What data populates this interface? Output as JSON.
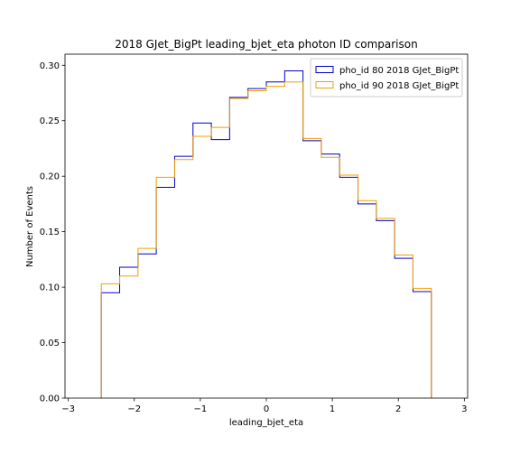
{
  "chart_data": {
    "type": "step",
    "title": "2018 GJet_BigPt leading_bjet_eta photon ID comparison",
    "xlabel": "leading_bjet_eta",
    "ylabel": "Number of Events",
    "xlim": [
      -3.05,
      3.05
    ],
    "ylim": [
      0,
      0.31
    ],
    "xticks": [
      -3,
      -2,
      -1,
      0,
      1,
      2,
      3
    ],
    "xtick_labels": [
      "−3",
      "−2",
      "−1",
      "0",
      "1",
      "2",
      "3"
    ],
    "yticks": [
      0.0,
      0.05,
      0.1,
      0.15,
      0.2,
      0.25,
      0.3
    ],
    "ytick_labels": [
      "0.00",
      "0.05",
      "0.10",
      "0.15",
      "0.20",
      "0.25",
      "0.30"
    ],
    "grid": false,
    "legend_position": "top-right",
    "bin_edges": [
      -2.5,
      -2.222,
      -1.944,
      -1.667,
      -1.389,
      -1.111,
      -0.833,
      -0.556,
      -0.278,
      0.0,
      0.278,
      0.556,
      0.833,
      1.111,
      1.389,
      1.667,
      1.944,
      2.222,
      2.5
    ],
    "series": [
      {
        "name": "pho_id 80 2018 GJet_BigPt",
        "color": "#0000cc",
        "values": [
          0.095,
          0.118,
          0.13,
          0.19,
          0.218,
          0.248,
          0.233,
          0.271,
          0.279,
          0.285,
          0.295,
          0.232,
          0.22,
          0.199,
          0.175,
          0.16,
          0.126,
          0.096
        ]
      },
      {
        "name": "pho_id 90 2018 GJet_BigPt",
        "color": "#f0a000",
        "values": [
          0.103,
          0.11,
          0.135,
          0.199,
          0.215,
          0.236,
          0.244,
          0.27,
          0.277,
          0.281,
          0.285,
          0.234,
          0.217,
          0.201,
          0.178,
          0.162,
          0.129,
          0.099
        ]
      }
    ]
  }
}
